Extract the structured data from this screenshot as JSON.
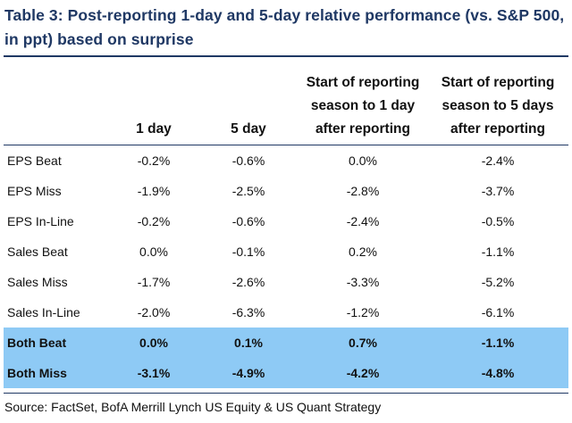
{
  "title": "Table 3: Post-reporting 1-day and 5-day relative performance (vs. S&P 500, in ppt) based on surprise",
  "table": {
    "headers": [
      "",
      "1 day",
      "5 day",
      "Start of reporting\nseason to 1 day\nafter reporting",
      "Start of reporting\nseason to 5 days\nafter reporting"
    ],
    "rows": [
      [
        "EPS Beat",
        "-0.2%",
        "-0.6%",
        "0.0%",
        "-2.4%"
      ],
      [
        "EPS Miss",
        "-1.9%",
        "-2.5%",
        "-2.8%",
        "-3.7%"
      ],
      [
        "EPS In-Line",
        "-0.2%",
        "-0.6%",
        "-2.4%",
        "-0.5%"
      ],
      [
        "Sales Beat",
        "0.0%",
        "-0.1%",
        "0.2%",
        "-1.1%"
      ],
      [
        "Sales Miss",
        "-1.7%",
        "-2.6%",
        "-3.3%",
        "-5.2%"
      ],
      [
        "Sales In-Line",
        "-2.0%",
        "-6.3%",
        "-1.2%",
        "-6.1%"
      ],
      [
        "Both Beat",
        "0.0%",
        "0.1%",
        "0.7%",
        "-1.1%"
      ],
      [
        "Both Miss",
        "-3.1%",
        "-4.9%",
        "-4.2%",
        "-4.8%"
      ]
    ],
    "highlight_rows": [
      "Both Beat",
      "Both Miss"
    ],
    "highlight_color": "#8ecaf5"
  },
  "source": "Source: FactSet, BofA Merrill Lynch US Equity & US Quant Strategy",
  "colors": {
    "title": "#1f3864",
    "rule": "#1f3864"
  }
}
